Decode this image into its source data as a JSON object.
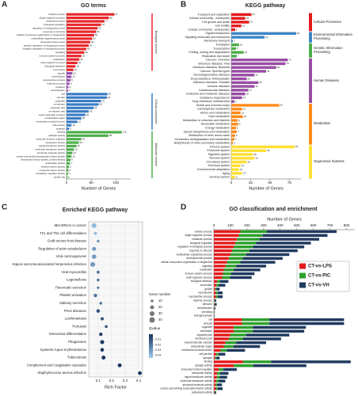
{
  "chart_data": [
    {
      "panel": "A",
      "type": "bar",
      "orientation": "horizontal",
      "title": "GO terms",
      "xlabel": "Number of Genes",
      "xlim": [
        0,
        130
      ],
      "xticks": [
        0,
        50,
        100
      ],
      "group_labels": "vertical",
      "groups": [
        {
          "name": "Biological process",
          "color": "#e8262a",
          "categories": [
            "cellular process",
            "single-organism process",
            "metabolic process",
            "biological regulation",
            "regulation of biological process",
            "response to stimulus",
            "cellular component organization or biogenesis",
            "multicellular organismal process",
            "developmental process",
            "positive regulation of biological process",
            "negative regulation of biological process",
            "signaling",
            "immune system process",
            "localization",
            "multi-organism process",
            "biological adhesion",
            "locomotion"
          ],
          "values": [
            97,
            86,
            77,
            70,
            63,
            60,
            56,
            52,
            48,
            45,
            40,
            36,
            30,
            26,
            22,
            18,
            14
          ]
        },
        {
          "color": "#9b4fb0",
          "categories": [
            "growth",
            "reproduction",
            "reproductive process",
            "rhythmic process",
            "behavior",
            "detoxification"
          ],
          "values": [
            12,
            10,
            8,
            6,
            4,
            3
          ]
        },
        {
          "name": "Cellular component",
          "color": "#3a7cc4",
          "categories": [
            "cell",
            "cell part",
            "organelle",
            "membrane",
            "organelle part",
            "membrane part",
            "macromolecular complex",
            "extracellular region",
            "membrane-enclosed lumen",
            "cell junction",
            "synapse"
          ],
          "values": [
            83,
            82,
            70,
            65,
            55,
            45,
            38,
            30,
            22,
            10,
            5
          ]
        },
        {
          "name": "Molecular function",
          "color": "#4daf4a",
          "categories": [
            "binding",
            "catalytic activity",
            "molecular function regulator",
            "transporter activity",
            "signal transducer activity",
            "molecular transducer activity",
            "structural molecule activity",
            "nucleic acid binding transcription factor activity",
            "transcription factor activity, protein binding",
            "antioxidant activity",
            "electron carrier activity",
            "molecular carrier activity",
            "translation regulator activity",
            "protein tag"
          ],
          "values": [
            112,
            85,
            30,
            25,
            20,
            15,
            12,
            10,
            8,
            7,
            5,
            4,
            3,
            2
          ]
        }
      ]
    },
    {
      "panel": "B",
      "type": "bar",
      "orientation": "horizontal",
      "title": "KEGG pathway",
      "xlabel": "Number of Genes",
      "xlim": [
        0,
        90
      ],
      "xticks": [
        0,
        25,
        50,
        75
      ],
      "group_labels": "boxed",
      "groups": [
        {
          "name": "Cellular Processes",
          "color": "#e41a1c",
          "categories": [
            "Transport and catabolism",
            "Cellular community - eukaryotes",
            "Cell growth and death",
            "Cell motility",
            "Cellular community - prokaryotes"
          ],
          "values": [
            26,
            18,
            23,
            13,
            5
          ]
        },
        {
          "name": "Environmental Information Processing",
          "color": "#3d85c6",
          "categories": [
            "Signal transduction",
            "Signaling molecules and interaction",
            "Membrane transport"
          ],
          "values": [
            84,
            43,
            2
          ]
        },
        {
          "name": "Genetic Information Processing",
          "color": "#4daf4a",
          "categories": [
            "Translation",
            "Transcription",
            "Folding, sorting and degradation",
            "Replication and repair"
          ],
          "values": [
            10,
            6,
            16,
            7
          ]
        },
        {
          "name": "Human Diseases",
          "color": "#984ea3",
          "categories": [
            "Cancers: Overview",
            "Infectious diseases: Viral",
            "Infectious diseases: Bacterial",
            "Cancers: Specific types",
            "Neurodegenerative diseases",
            "Drug resistance: Antineoplastic",
            "Infectious diseases: Parasitic",
            "Immune diseases",
            "Cardiovascular diseases",
            "Endocrine and metabolic diseases",
            "Substance dependence",
            "Drug resistance: Antimicrobial"
          ],
          "values": [
            73,
            70,
            58,
            45,
            30,
            20,
            35,
            30,
            22,
            18,
            14,
            4
          ]
        },
        {
          "name": "Metabolism",
          "color": "#ff8c1a",
          "categories": [
            "Global and overview maps",
            "Carbohydrate metabolism",
            "Amino acid metabolism",
            "Lipid metabolism",
            "Metabolism of cofactors and vitamins",
            "Nucleotide metabolism",
            "Energy metabolism",
            "Glycan biosynthesis and metabolism",
            "Metabolism of other amino acids",
            "Xenobiotics biodegradation and metabolism",
            "Biosynthesis of other secondary metabolites"
          ],
          "values": [
            62,
            14,
            12,
            15,
            8,
            9,
            6,
            7,
            5,
            4,
            2
          ]
        },
        {
          "name": "Organismal Systems",
          "color": "#ffe033",
          "categories": [
            "Immune system",
            "Endocrine system",
            "Digestive system",
            "Nervous system",
            "Circulatory system",
            "Excretory system",
            "Environmental adaptation",
            "Aging",
            "Sensory system"
          ],
          "values": [
            82,
            45,
            28,
            30,
            20,
            12,
            10,
            14,
            5
          ]
        }
      ]
    },
    {
      "panel": "C",
      "type": "scatter",
      "title": "Enriched KEGG pathway",
      "xlabel": "Rich Factor",
      "xlim": [
        0.03,
        0.43
      ],
      "xticks": [
        0.1,
        0.2,
        0.3,
        0.4
      ],
      "grid": true,
      "categories": [
        "MicroRNAs in cancer",
        "Th1 and Th2 cell differentiation",
        "Graft-versus-host disease",
        "Regulation of actin cytoskeleton",
        "Viral carcinogenesis",
        "Kaposi sarcoma-associated herpesvirus infection",
        "Viral myocarditis",
        "Legionellosis",
        "Pancreatic secretion",
        "Platelet activation",
        "Salivary secretion",
        "Prion diseases",
        "Leishmaniasis",
        "Pertussis",
        "Osteoclast differentiation",
        "Phagosome",
        "Systemic lupus erythematosus",
        "Tuberculosis",
        "Complement and coagulation cascades",
        "Staphylococcus aureus infection"
      ],
      "values": [
        0.07,
        0.08,
        0.1,
        0.07,
        0.07,
        0.06,
        0.1,
        0.1,
        0.1,
        0.08,
        0.12,
        0.1,
        0.13,
        0.16,
        0.12,
        0.13,
        0.13,
        0.14,
        0.26,
        0.41
      ],
      "sizes": [
        30,
        12,
        10,
        20,
        25,
        30,
        12,
        10,
        8,
        16,
        10,
        17,
        14,
        11,
        16,
        22,
        18,
        20,
        20,
        18
      ],
      "qvalues": [
        0.04,
        0.04,
        0.03,
        0.03,
        0.03,
        0.03,
        0.02,
        0.02,
        0.02,
        0.02,
        0.02,
        0.01,
        0.01,
        0.01,
        0.005,
        0.003,
        0.002,
        0.001,
        0.0001,
        0
      ],
      "size_legend": {
        "title": "Gene number",
        "values": [
          10,
          20,
          30,
          40
        ]
      },
      "color_legend": {
        "title": "Qvalue",
        "range": [
          0,
          0.045
        ],
        "ticks": [
          0.01,
          0.02,
          0.03,
          0.04
        ],
        "colors": [
          "#16325c",
          "#9ccbf0"
        ]
      }
    },
    {
      "panel": "D",
      "type": "bar",
      "orientation": "horizontal",
      "stacked": true,
      "title": "GO classification and enrichment",
      "xlabel": "Number of Genes",
      "xaxis": "top",
      "xlim": [
        0,
        850
      ],
      "xticks": [
        0,
        100,
        200,
        300,
        400,
        500,
        600,
        700,
        800
      ],
      "categories": [
        "cellular process",
        "single-organism process",
        "metabolic process",
        "biological regulation",
        "regulation of biological process",
        "response to stimulus",
        "multicellular organismal process",
        "developmental process",
        "cellular component organization or biogenesis",
        "signaling",
        "localization",
        "immune system process",
        "multi-organism process",
        "biological adhesion",
        "locomotion",
        "growth",
        "reproduction",
        "reproductive process",
        "rhythmic process",
        "behavior",
        "detoxification",
        "cell killing",
        "biological phase",
        "cell",
        "cell part",
        "organelle",
        "membrane",
        "organelle part",
        "membrane part",
        "macromolecular complex",
        "extracellular region",
        "membrane-enclosed lumen",
        "cell junction",
        "synapse",
        "binding",
        "catalytic activity",
        "molecular function regulator",
        "transporter activity",
        "signal transducer activity",
        "molecular transducer activity",
        "structural molecule activity",
        "nucleic acid binding transcription factor activity",
        "antioxidant activity"
      ],
      "series": [
        {
          "name": "CT-vs-LPS",
          "color": "#e41a1c",
          "values": [
            160,
            150,
            140,
            130,
            120,
            110,
            100,
            90,
            80,
            70,
            60,
            55,
            50,
            20,
            15,
            8,
            12,
            12,
            3,
            4,
            2,
            1,
            1,
            170,
            170,
            120,
            120,
            100,
            90,
            70,
            60,
            40,
            15,
            8,
            175,
            120,
            30,
            20,
            18,
            15,
            10,
            12,
            3
          ]
        },
        {
          "name": "CT-vs-PIC",
          "color": "#2ca02c",
          "values": [
            160,
            145,
            135,
            125,
            115,
            105,
            95,
            85,
            80,
            65,
            60,
            50,
            48,
            18,
            14,
            7,
            11,
            11,
            3,
            3,
            2,
            1,
            1,
            165,
            165,
            115,
            115,
            95,
            85,
            65,
            58,
            38,
            14,
            7,
            170,
            118,
            28,
            18,
            17,
            14,
            9,
            11,
            3
          ]
        },
        {
          "name": "CT-vs-VH",
          "color": "#1f3a5f",
          "values": [
            420,
            390,
            360,
            330,
            310,
            290,
            260,
            240,
            210,
            180,
            160,
            140,
            130,
            50,
            40,
            20,
            30,
            30,
            8,
            10,
            5,
            3,
            2,
            450,
            450,
            320,
            310,
            260,
            230,
            180,
            160,
            110,
            40,
            20,
            480,
            320,
            80,
            50,
            45,
            40,
            30,
            30,
            8
          ]
        }
      ]
    }
  ]
}
